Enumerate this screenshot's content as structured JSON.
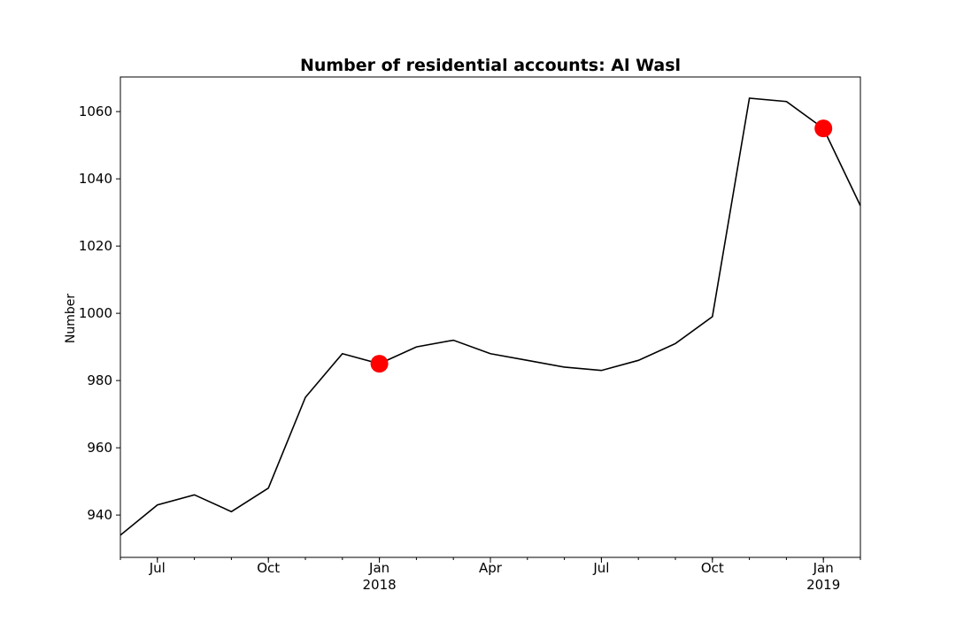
{
  "chart_data": {
    "type": "line",
    "title": "Number of residential accounts: Al Wasl",
    "y_label": "Number",
    "x": [
      "2017-06",
      "2017-07",
      "2017-08",
      "2017-09",
      "2017-10",
      "2017-11",
      "2017-12",
      "2018-01",
      "2018-02",
      "2018-03",
      "2018-04",
      "2018-05",
      "2018-06",
      "2018-07",
      "2018-08",
      "2018-09",
      "2018-10",
      "2018-11",
      "2018-12",
      "2019-01",
      "2019-02"
    ],
    "series": [
      {
        "color": "#000000",
        "values": [
          934,
          943,
          946,
          941,
          948,
          975,
          988,
          985,
          990,
          992,
          988,
          986,
          984,
          983,
          986,
          991,
          999,
          1064,
          1063,
          1055,
          1032
        ]
      }
    ],
    "markers": {
      "x": [
        "2018-01",
        "2019-01"
      ],
      "values": [
        985,
        1055
      ],
      "color": "#ff0000"
    },
    "xlim": [
      "2017-06",
      "2019-02"
    ],
    "xticks": [
      {
        "value": "2017-07",
        "label": "Jul"
      },
      {
        "value": "2017-10",
        "label": "Oct"
      },
      {
        "value": "2018-01",
        "label": "Jan\n2018"
      },
      {
        "value": "2018-04",
        "label": "Apr"
      },
      {
        "value": "2018-07",
        "label": "Jul"
      },
      {
        "value": "2018-10",
        "label": "Oct"
      },
      {
        "value": "2019-01",
        "label": "Jan\n2019"
      }
    ],
    "ylim": [
      927.4,
      1070.3
    ],
    "yticks": [
      940,
      960,
      980,
      1000,
      1020,
      1040,
      1060
    ]
  }
}
